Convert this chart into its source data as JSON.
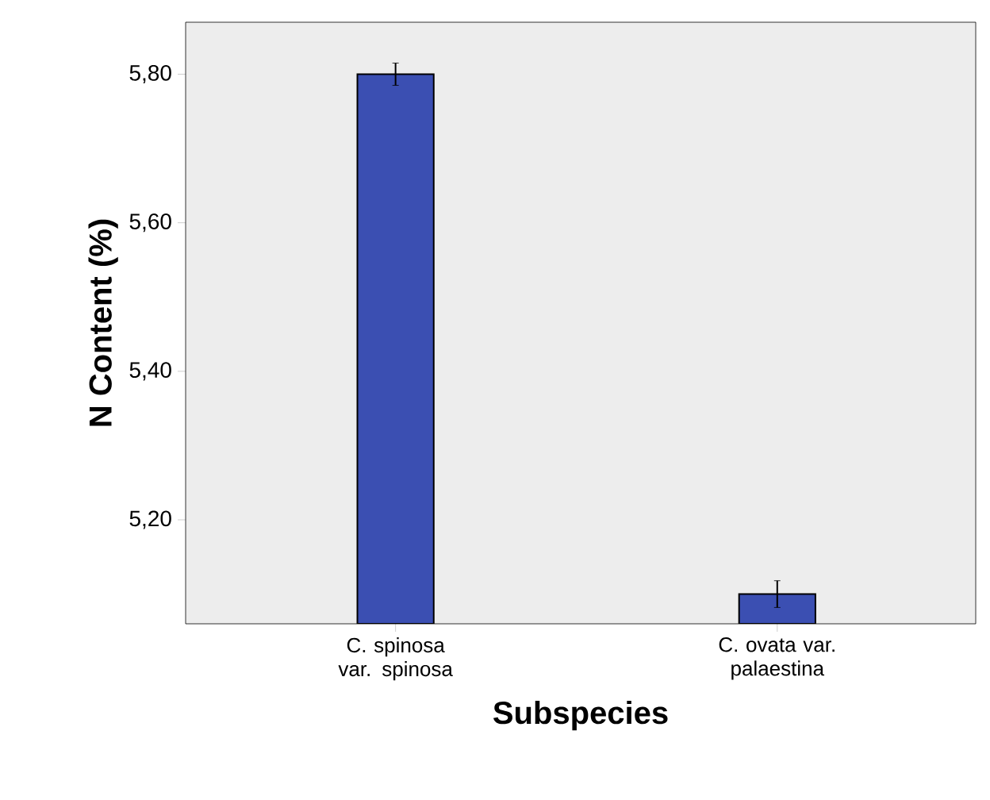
{
  "chart_data": {
    "type": "bar",
    "xlabel": "Subspecies",
    "ylabel": "N Content (%)",
    "categories": [
      "C. spinosa var. spinosa",
      "C. ovata var. palaestina"
    ],
    "values": [
      5.8,
      5.1
    ],
    "errors": [
      0.015,
      0.018
    ],
    "color": "#3b4fb2",
    "ylim": [
      5.06,
      5.87
    ],
    "yticks": [
      {
        "value": 5.2,
        "label": "5,20"
      },
      {
        "value": 5.4,
        "label": "5,40"
      },
      {
        "value": 5.6,
        "label": "5,60"
      },
      {
        "value": 5.8,
        "label": "5,80"
      }
    ],
    "grid": false
  }
}
